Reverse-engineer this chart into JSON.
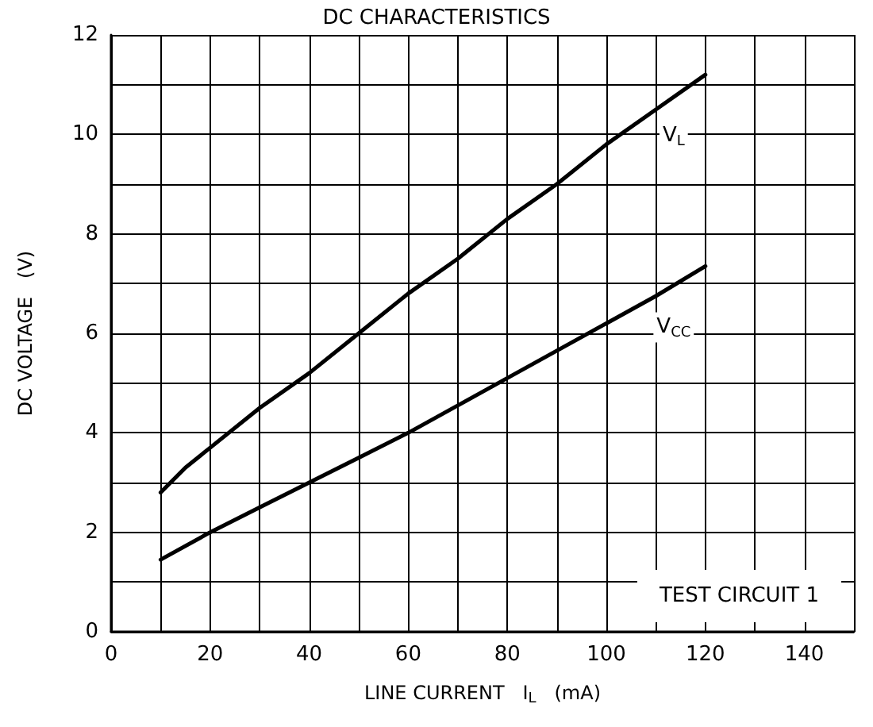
{
  "chart_data": {
    "type": "line",
    "title": "DC CHARACTERISTICS",
    "xlabel": "LINE CURRENT   I$_{L}$   (mA)",
    "ylabel": "DC VOLTAGE   (V)",
    "series": [
      {
        "name": "V$_{L}$",
        "color": "#000000",
        "x": [
          10,
          15,
          20,
          30,
          40,
          50,
          60,
          70,
          80,
          90,
          100,
          110,
          120
        ],
        "values": [
          2.8,
          3.3,
          3.7,
          4.5,
          5.2,
          6.0,
          6.8,
          7.5,
          8.3,
          9.0,
          9.8,
          10.5,
          11.2
        ]
      },
      {
        "name": "V$_{CC}$",
        "color": "#000000",
        "x": [
          10,
          20,
          30,
          40,
          50,
          60,
          70,
          80,
          90,
          100,
          110,
          120
        ],
        "values": [
          1.45,
          2.0,
          2.5,
          3.0,
          3.5,
          4.0,
          4.55,
          5.1,
          5.65,
          6.2,
          6.75,
          7.35
        ]
      }
    ],
    "annotations": [
      "TEST CIRCUIT 1"
    ],
    "xlim": [
      0,
      150
    ],
    "xticks": [
      0,
      {
        "value": 10,
        "label": null
      },
      20,
      {
        "value": 30,
        "label": null
      },
      40,
      {
        "value": 50,
        "label": null
      },
      60,
      {
        "value": 70,
        "label": null
      },
      80,
      {
        "value": 90,
        "label": null
      },
      100,
      {
        "value": 110,
        "label": null
      },
      120,
      {
        "value": 130,
        "label": null
      },
      140,
      {
        "value": 150,
        "label": null
      }
    ],
    "ylim": [
      0,
      12
    ],
    "yticks": [
      0,
      {
        "value": 1,
        "label": null
      },
      2,
      {
        "value": 3,
        "label": null
      },
      4,
      {
        "value": 5,
        "label": null
      },
      6,
      {
        "value": 7,
        "label": null
      },
      8,
      {
        "value": 9,
        "label": null
      },
      10,
      {
        "value": 11,
        "label": null
      },
      12
    ],
    "grid": true,
    "marker": "none",
    "line_style": "solid",
    "legend": false
  }
}
